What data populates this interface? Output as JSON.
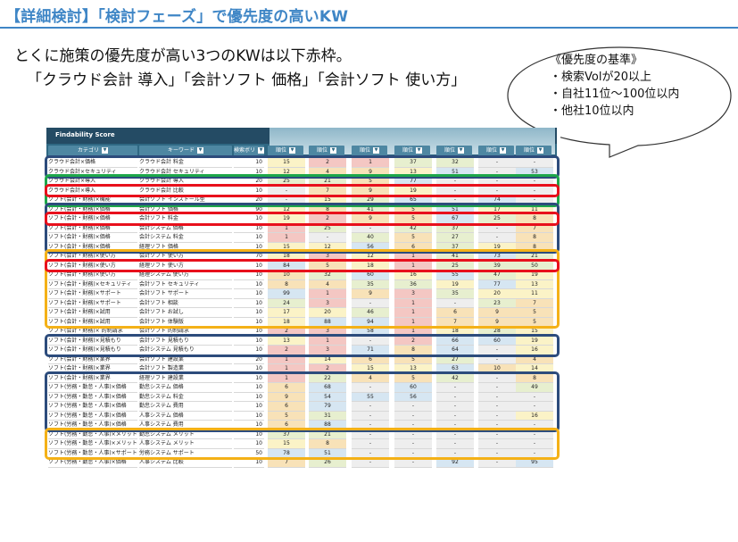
{
  "title": "【詳細検討】「検討フェーズ」で優先度の高いKW",
  "lead_line1": "とくに施策の優先度が高い3つのKWは以下赤枠。",
  "lead_line2": "「クラウド会計 導入」「会計ソフト 価格」「会計ソフト 使い方」",
  "criteria": {
    "heading": "《優先度の基準》",
    "items": [
      "・検索Volが20以上",
      "・自社11位～100位以内",
      "・他社10位以内"
    ]
  },
  "sheet": {
    "title": "Findability Score",
    "headers": {
      "category": "カテゴリ",
      "keyword": "キーワード",
      "volume": "検索ボリ",
      "rank": "順位"
    },
    "rows": [
      {
        "cat": "クラウド会計×価格",
        "kw": "クラウド会計 料金",
        "vol": "10",
        "r": [
          "15",
          "2",
          "1",
          "37",
          "32",
          "-",
          "-"
        ]
      },
      {
        "cat": "クラウド会計×セキュリティ",
        "kw": "クラウド会計 セキュリティ",
        "vol": "10",
        "r": [
          "12",
          "4",
          "9",
          "13",
          "51",
          "-",
          "53"
        ]
      },
      {
        "cat": "クラウド会計×導入",
        "kw": "クラウド会計 導入",
        "vol": "20",
        "r": [
          "25",
          "21",
          "5",
          "77",
          "-",
          "-",
          "-"
        ]
      },
      {
        "cat": "クラウド会計×導入",
        "kw": "クラウド会計 比較",
        "vol": "10",
        "r": [
          "-",
          "7",
          "9",
          "19",
          "-",
          "-",
          "-"
        ]
      },
      {
        "cat": "ソフト(会計・財務)×機能",
        "kw": "会計ソフト インストール型",
        "vol": "20",
        "r": [
          "-",
          "15",
          "29",
          "65",
          "-",
          "74",
          "-"
        ]
      },
      {
        "cat": "ソフト(会計・財務)×価格",
        "kw": "会計ソフト 価格",
        "vol": "90",
        "r": [
          "12",
          "8",
          "41",
          "5",
          "51",
          "17",
          "11"
        ]
      },
      {
        "cat": "ソフト(会計・財務)×価格",
        "kw": "会計ソフト 料金",
        "vol": "10",
        "r": [
          "19",
          "2",
          "9",
          "5",
          "67",
          "25",
          "8"
        ]
      },
      {
        "cat": "ソフト(会計・財務)×価格",
        "kw": "会計システム 価格",
        "vol": "10",
        "r": [
          "1",
          "25",
          "-",
          "42",
          "37",
          "-",
          "7"
        ]
      },
      {
        "cat": "ソフト(会計・財務)×価格",
        "kw": "会計システム 料金",
        "vol": "10",
        "r": [
          "1",
          "-",
          "40",
          "5",
          "27",
          "-",
          "8"
        ]
      },
      {
        "cat": "ソフト(会計・財務)×価格",
        "kw": "経理ソフト 価格",
        "vol": "10",
        "r": [
          "15",
          "12",
          "56",
          "6",
          "37",
          "19",
          "8"
        ]
      },
      {
        "cat": "ソフト(会計・財務)×使い方",
        "kw": "会計ソフト 使い方",
        "vol": "70",
        "r": [
          "18",
          "3",
          "12",
          "1",
          "41",
          "73",
          "21"
        ]
      },
      {
        "cat": "ソフト(会計・財務)×使い方",
        "kw": "経理ソフト 使い方",
        "vol": "10",
        "r": [
          "84",
          "5",
          "18",
          "1",
          "25",
          "39",
          "50"
        ]
      },
      {
        "cat": "ソフト(会計・財務)×使い方",
        "kw": "経理システム 使い方",
        "vol": "10",
        "r": [
          "10",
          "32",
          "60",
          "16",
          "55",
          "47",
          "19"
        ]
      },
      {
        "cat": "ソフト(会計・財務)×セキュリティ",
        "kw": "会計ソフト セキュリティ",
        "vol": "10",
        "r": [
          "8",
          "4",
          "35",
          "36",
          "19",
          "77",
          "13"
        ]
      },
      {
        "cat": "ソフト(会計・財務)×サポート",
        "kw": "会計ソフト サポート",
        "vol": "10",
        "r": [
          "99",
          "1",
          "9",
          "3",
          "35",
          "20",
          "11"
        ]
      },
      {
        "cat": "ソフト(会計・財務)×サポート",
        "kw": "会計ソフト 相談",
        "vol": "10",
        "r": [
          "24",
          "3",
          "-",
          "1",
          "-",
          "23",
          "7"
        ]
      },
      {
        "cat": "ソフト(会計・財務)×試用",
        "kw": "会計ソフト お試し",
        "vol": "10",
        "r": [
          "17",
          "20",
          "46",
          "1",
          "6",
          "9",
          "5"
        ]
      },
      {
        "cat": "ソフト(会計・財務)×試用",
        "kw": "会計ソフト 体験版",
        "vol": "10",
        "r": [
          "18",
          "88",
          "94",
          "1",
          "7",
          "9",
          "5"
        ]
      },
      {
        "cat": "ソフト(会計・財務)× 的制請求",
        "kw": "会計ソフト 的制請求",
        "vol": "10",
        "r": [
          "2",
          "3",
          "58",
          "1",
          "18",
          "28",
          "15"
        ]
      },
      {
        "cat": "ソフト(会計・財務)×見積もり",
        "kw": "会計ソフト 見積もり",
        "vol": "10",
        "r": [
          "13",
          "1",
          "-",
          "2",
          "66",
          "60",
          "19"
        ]
      },
      {
        "cat": "ソフト(会計・財務)×見積もり",
        "kw": "会計システム 見積もり",
        "vol": "10",
        "r": [
          "2",
          "3",
          "71",
          "8",
          "64",
          "-",
          "16"
        ]
      },
      {
        "cat": "ソフト(会計・財務)×業界",
        "kw": "会計ソフト 建設業",
        "vol": "20",
        "r": [
          "1",
          "14",
          "6",
          "5",
          "27",
          "-",
          "4"
        ]
      },
      {
        "cat": "ソフト(会計・財務)×業界",
        "kw": "会計ソフト 製造業",
        "vol": "10",
        "r": [
          "1",
          "2",
          "15",
          "13",
          "63",
          "10",
          "14"
        ]
      },
      {
        "cat": "ソフト(会計・財務)×業界",
        "kw": "経理ソフト 建設業",
        "vol": "10",
        "r": [
          "1",
          "22",
          "4",
          "5",
          "42",
          "-",
          "8"
        ]
      },
      {
        "cat": "ソフト(労務・勤怠・人事)×価格",
        "kw": "勤怠システム 価格",
        "vol": "10",
        "r": [
          "6",
          "68",
          "-",
          "60",
          "-",
          "-",
          "49"
        ]
      },
      {
        "cat": "ソフト(労務・勤怠・人事)×価格",
        "kw": "勤怠システム 料金",
        "vol": "10",
        "r": [
          "9",
          "54",
          "55",
          "56",
          "-",
          "-",
          "-"
        ]
      },
      {
        "cat": "ソフト(労務・勤怠・人事)×価格",
        "kw": "勤怠システム 費用",
        "vol": "10",
        "r": [
          "6",
          "79",
          "-",
          "-",
          "-",
          "-",
          "-"
        ]
      },
      {
        "cat": "ソフト(労務・勤怠・人事)×価格",
        "kw": "人事システム 価格",
        "vol": "10",
        "r": [
          "5",
          "31",
          "-",
          "-",
          "-",
          "-",
          "16"
        ]
      },
      {
        "cat": "ソフト(労務・勤怠・人事)×価格",
        "kw": "人事システム 費用",
        "vol": "10",
        "r": [
          "6",
          "88",
          "-",
          "-",
          "-",
          "-",
          "-"
        ]
      },
      {
        "cat": "ソフト(労務・勤怠・人事)×メリット",
        "kw": "勤怠システム メリット",
        "vol": "10",
        "r": [
          "37",
          "21",
          "-",
          "-",
          "-",
          "-",
          "-"
        ]
      },
      {
        "cat": "ソフト(労務・勤怠・人事)×メリット",
        "kw": "人事システム メリット",
        "vol": "10",
        "r": [
          "15",
          "8",
          "-",
          "-",
          "-",
          "-",
          "-"
        ]
      },
      {
        "cat": "ソフト(労務・勤怠・人事)×サポート",
        "kw": "労務システム サポート",
        "vol": "50",
        "r": [
          "78",
          "51",
          "-",
          "-",
          "-",
          "-",
          "-"
        ]
      },
      {
        "cat": "ソフト(労務・勤怠・人事)×価格",
        "kw": "人事システム 比較",
        "vol": "10",
        "r": [
          "7",
          "26",
          "-",
          "-",
          "92",
          "-",
          "95"
        ]
      }
    ]
  },
  "colors": {
    "red": "#e8101c",
    "navy": "#2d4c7c",
    "green": "#1da74a",
    "amber": "#f4b117",
    "title": "#3f86c6"
  }
}
